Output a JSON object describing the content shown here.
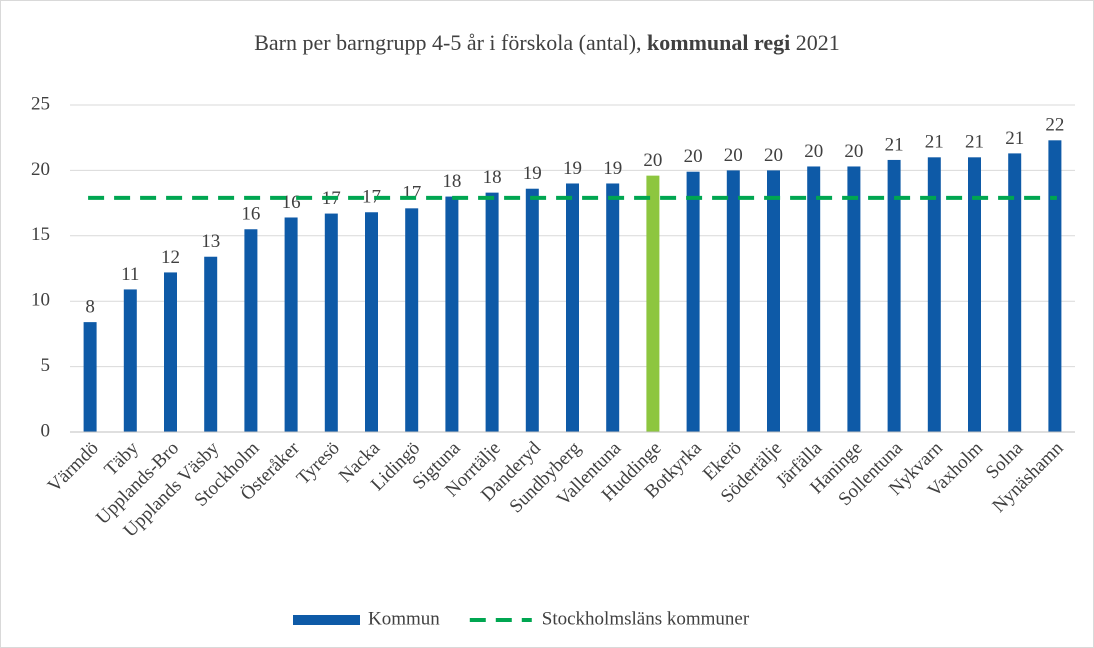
{
  "chart_data": {
    "type": "bar",
    "title": [
      "Barn per barngrupp 4-5 år i förskola (antal), ",
      "kommunal regi",
      " 2021"
    ],
    "categories": [
      "Värmdö",
      "Täby",
      "Upplands-Bro",
      "Upplands Väsby",
      "Stockholm",
      "Österåker",
      "Tyresö",
      "Nacka",
      "Lidingö",
      "Sigtuna",
      "Norrtälje",
      "Danderyd",
      "Sundbyberg",
      "Vallentuna",
      "Huddinge",
      "Botkyrka",
      "Ekerö",
      "Södertälje",
      "Järfälla",
      "Haninge",
      "Sollentuna",
      "Nykvarn",
      "Vaxholm",
      "Solna",
      "Nynäshamn"
    ],
    "series": [
      {
        "name": "Kommun",
        "color": "#0e5aa7",
        "values": [
          8.4,
          10.9,
          12.2,
          13.4,
          15.5,
          16.4,
          16.7,
          16.8,
          17.1,
          18.0,
          18.3,
          18.6,
          19.0,
          19.0,
          19.6,
          19.9,
          20.0,
          20.0,
          20.3,
          20.3,
          20.8,
          21.0,
          21.0,
          21.3,
          22.3
        ],
        "value_labels": [
          "8",
          "11",
          "12",
          "13",
          "16",
          "16",
          "17",
          "17",
          "17",
          "18",
          "18",
          "19",
          "19",
          "19",
          "20",
          "20",
          "20",
          "20",
          "20",
          "20",
          "21",
          "21",
          "21",
          "21",
          "22"
        ],
        "colors": [
          "#0e5aa7",
          "#0e5aa7",
          "#0e5aa7",
          "#0e5aa7",
          "#0e5aa7",
          "#0e5aa7",
          "#0e5aa7",
          "#0e5aa7",
          "#0e5aa7",
          "#0e5aa7",
          "#0e5aa7",
          "#0e5aa7",
          "#0e5aa7",
          "#0e5aa7",
          "#8dc63f",
          "#0e5aa7",
          "#0e5aa7",
          "#0e5aa7",
          "#0e5aa7",
          "#0e5aa7",
          "#0e5aa7",
          "#0e5aa7",
          "#0e5aa7",
          "#0e5aa7",
          "#0e5aa7"
        ]
      },
      {
        "name": "Stockholmsläns kommuner",
        "color": "#00a651",
        "type": "line",
        "style": "dashed",
        "value": 17.9
      }
    ],
    "ylim": [
      0,
      25
    ],
    "yticks": [
      0,
      5,
      10,
      15,
      20,
      25
    ],
    "grid": true,
    "legend": "bottom"
  }
}
